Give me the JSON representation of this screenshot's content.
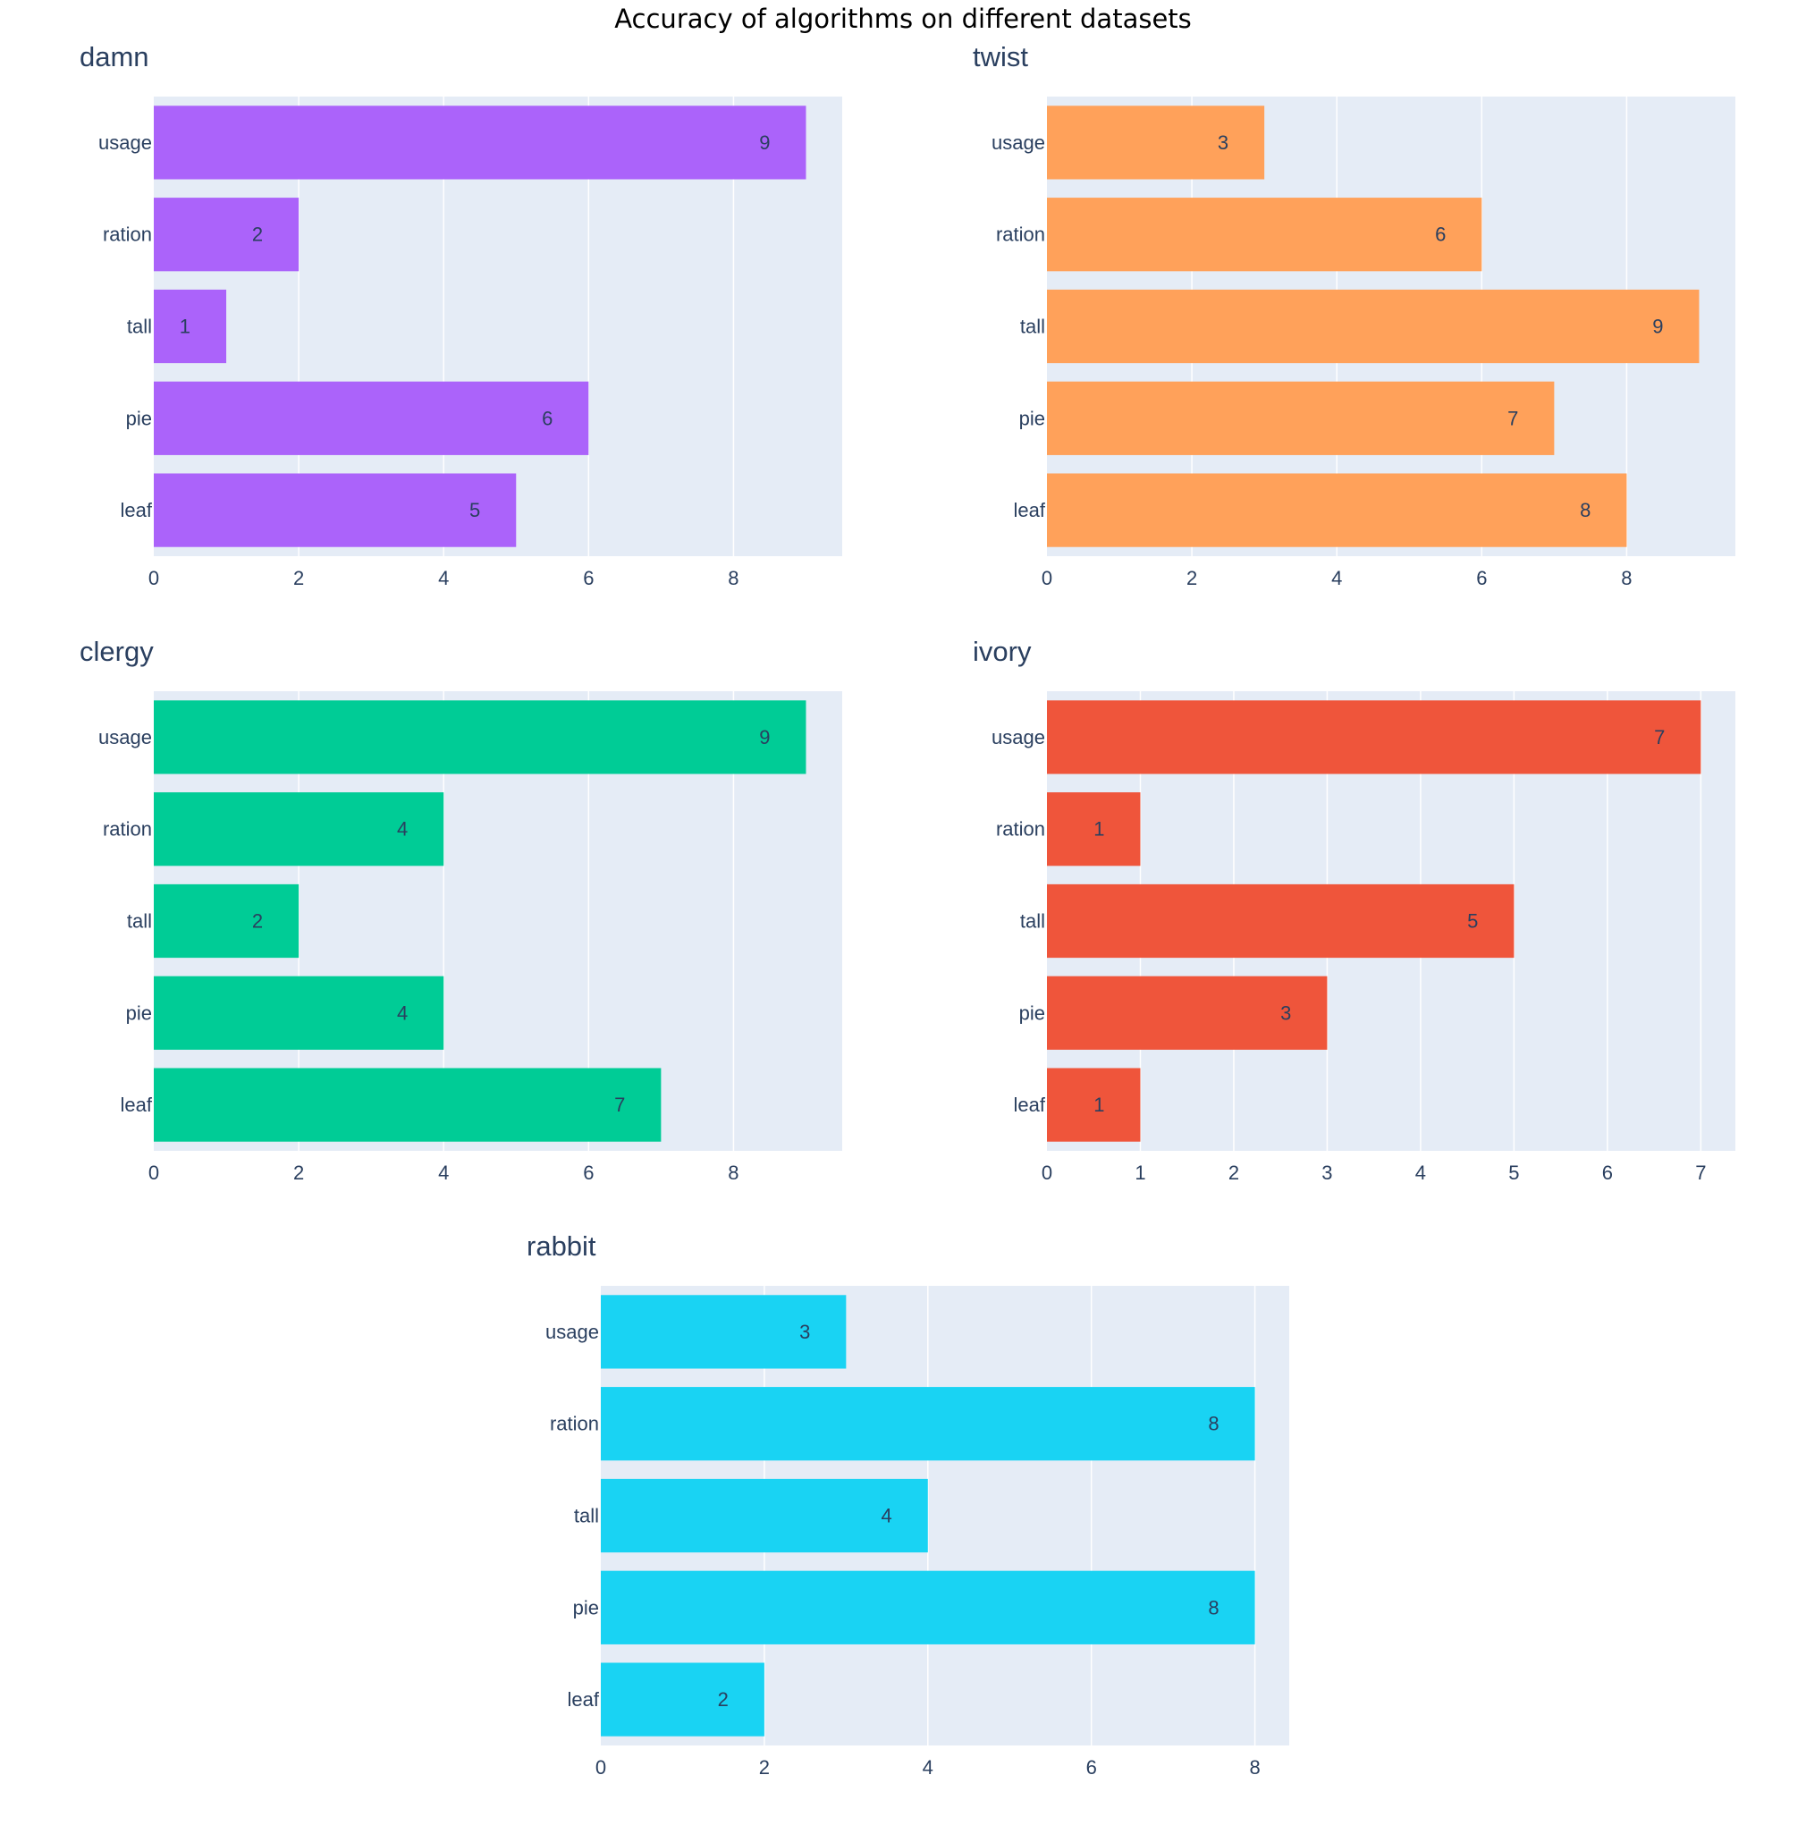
{
  "figure_title": "Accuracy of algorithms on different datasets",
  "colors": {
    "plot_bg": "#e5ecf6",
    "grid": "#ffffff",
    "text": "#2a3f5f"
  },
  "chart_data": [
    {
      "type": "bar",
      "orientation": "horizontal",
      "title": "damn",
      "color": "#ab63fa",
      "categories": [
        "usage",
        "ration",
        "tall",
        "pie",
        "leaf"
      ],
      "values": [
        9,
        2,
        1,
        6,
        5
      ],
      "xlim": [
        0,
        9.5
      ],
      "xticks": [
        0,
        2,
        4,
        6,
        8
      ],
      "grid": true
    },
    {
      "type": "bar",
      "orientation": "horizontal",
      "title": "twist",
      "color": "#ffa15a",
      "categories": [
        "usage",
        "ration",
        "tall",
        "pie",
        "leaf"
      ],
      "values": [
        3,
        6,
        9,
        7,
        8
      ],
      "xlim": [
        0,
        9.5
      ],
      "xticks": [
        0,
        2,
        4,
        6,
        8
      ],
      "grid": true
    },
    {
      "type": "bar",
      "orientation": "horizontal",
      "title": "clergy",
      "color": "#00cc96",
      "categories": [
        "usage",
        "ration",
        "tall",
        "pie",
        "leaf"
      ],
      "values": [
        9,
        4,
        2,
        4,
        7
      ],
      "xlim": [
        0,
        9.5
      ],
      "xticks": [
        0,
        2,
        4,
        6,
        8
      ],
      "grid": true
    },
    {
      "type": "bar",
      "orientation": "horizontal",
      "title": "ivory",
      "color": "#ef553b",
      "categories": [
        "usage",
        "ration",
        "tall",
        "pie",
        "leaf"
      ],
      "values": [
        7,
        1,
        5,
        3,
        1
      ],
      "xlim": [
        0,
        7.37
      ],
      "xticks": [
        0,
        1,
        2,
        3,
        4,
        5,
        6,
        7
      ],
      "grid": true
    },
    {
      "type": "bar",
      "orientation": "horizontal",
      "title": "rabbit",
      "color": "#19d3f3",
      "categories": [
        "usage",
        "ration",
        "tall",
        "pie",
        "leaf"
      ],
      "values": [
        3,
        8,
        4,
        8,
        2
      ],
      "xlim": [
        0,
        8.42
      ],
      "xticks": [
        0,
        2,
        4,
        6,
        8
      ],
      "grid": true
    }
  ]
}
